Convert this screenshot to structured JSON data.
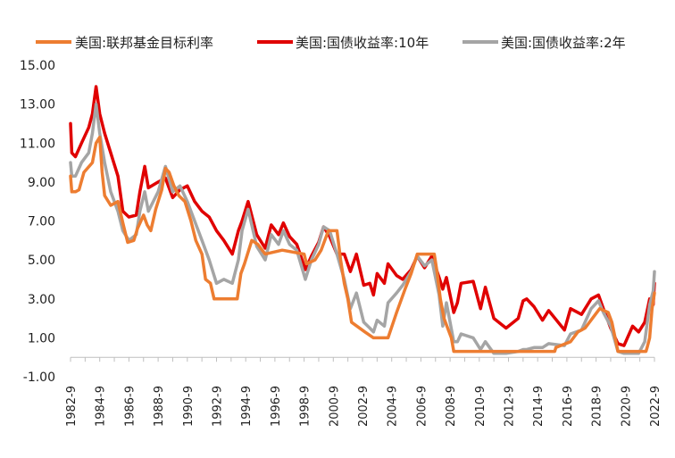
{
  "chart_data": {
    "type": "line",
    "title": "",
    "xlabel": "",
    "ylabel": "",
    "ylim": [
      -1.0,
      15.0
    ],
    "y_ticks": [
      "15.00",
      "13.00",
      "11.00",
      "9.00",
      "7.00",
      "5.00",
      "3.00",
      "1.00",
      "-1.00"
    ],
    "x_ticks": [
      "1982-9",
      "1984-9",
      "1986-9",
      "1988-9",
      "1990-9",
      "1992-9",
      "1994-9",
      "1996-9",
      "1998-9",
      "2000-9",
      "2002-9",
      "2004-9",
      "2006-9",
      "2008-9",
      "2010-9",
      "2012-9",
      "2014-9",
      "2016-9",
      "2018-9",
      "2020-9",
      "2022-9"
    ],
    "grid": false,
    "legend_position": "top",
    "series": [
      {
        "name": "美国:联邦基金目标利率",
        "color": "#ED7D31",
        "points": [
          [
            "1982-9",
            9.3
          ],
          [
            "1982-10",
            8.5
          ],
          [
            "1983-1",
            8.5
          ],
          [
            "1983-4",
            8.6
          ],
          [
            "1983-8",
            9.5
          ],
          [
            "1984-3",
            10.0
          ],
          [
            "1984-6",
            11.0
          ],
          [
            "1984-9",
            11.3
          ],
          [
            "1984-11",
            9.5
          ],
          [
            "1985-1",
            8.3
          ],
          [
            "1985-6",
            7.8
          ],
          [
            "1985-12",
            8.0
          ],
          [
            "1986-4",
            6.9
          ],
          [
            "1986-8",
            5.9
          ],
          [
            "1987-1",
            6.0
          ],
          [
            "1987-4",
            6.6
          ],
          [
            "1987-9",
            7.3
          ],
          [
            "1987-12",
            6.8
          ],
          [
            "1988-3",
            6.5
          ],
          [
            "1988-7",
            7.6
          ],
          [
            "1988-12",
            8.6
          ],
          [
            "1989-3",
            9.7
          ],
          [
            "1989-6",
            9.5
          ],
          [
            "1989-10",
            8.8
          ],
          [
            "1990-2",
            8.3
          ],
          [
            "1990-7",
            8.0
          ],
          [
            "1990-12",
            7.0
          ],
          [
            "1991-4",
            6.0
          ],
          [
            "1991-9",
            5.3
          ],
          [
            "1991-12",
            4.0
          ],
          [
            "1992-4",
            3.8
          ],
          [
            "1992-7",
            3.0
          ],
          [
            "1993-6",
            3.0
          ],
          [
            "1994-2",
            3.0
          ],
          [
            "1994-5",
            4.3
          ],
          [
            "1994-8",
            4.8
          ],
          [
            "1995-2",
            6.0
          ],
          [
            "1995-7",
            5.8
          ],
          [
            "1996-1",
            5.3
          ],
          [
            "1997-3",
            5.5
          ],
          [
            "1998-9",
            5.3
          ],
          [
            "1998-11",
            4.8
          ],
          [
            "1999-6",
            5.0
          ],
          [
            "1999-11",
            5.5
          ],
          [
            "2000-5",
            6.5
          ],
          [
            "2000-12",
            6.5
          ],
          [
            "2001-3",
            5.0
          ],
          [
            "2001-6",
            3.8
          ],
          [
            "2001-9",
            3.0
          ],
          [
            "2001-12",
            1.8
          ],
          [
            "2002-11",
            1.3
          ],
          [
            "2003-6",
            1.0
          ],
          [
            "2004-6",
            1.0
          ],
          [
            "2005-1",
            2.3
          ],
          [
            "2005-8",
            3.5
          ],
          [
            "2006-1",
            4.3
          ],
          [
            "2006-6",
            5.3
          ],
          [
            "2007-8",
            5.3
          ],
          [
            "2007-10",
            4.5
          ],
          [
            "2008-1",
            3.0
          ],
          [
            "2008-4",
            2.0
          ],
          [
            "2008-10",
            1.0
          ],
          [
            "2008-12",
            0.3
          ],
          [
            "2015-11",
            0.3
          ],
          [
            "2015-12",
            0.5
          ],
          [
            "2016-12",
            0.8
          ],
          [
            "2017-6",
            1.3
          ],
          [
            "2017-12",
            1.5
          ],
          [
            "2018-6",
            2.0
          ],
          [
            "2018-12",
            2.5
          ],
          [
            "2019-7",
            2.3
          ],
          [
            "2019-10",
            1.8
          ],
          [
            "2020-3",
            0.3
          ],
          [
            "2022-2",
            0.3
          ],
          [
            "2022-3",
            0.5
          ],
          [
            "2022-5",
            1.0
          ],
          [
            "2022-7",
            2.5
          ],
          [
            "2022-9",
            3.3
          ]
        ]
      },
      {
        "name": "美国:国债收益率:10年",
        "color": "#E00000",
        "points": [
          [
            "1982-9",
            12.0
          ],
          [
            "1982-10",
            10.5
          ],
          [
            "1983-1",
            10.3
          ],
          [
            "1983-6",
            11.0
          ],
          [
            "1983-12",
            11.8
          ],
          [
            "1984-3",
            12.5
          ],
          [
            "1984-6",
            13.9
          ],
          [
            "1984-9",
            12.5
          ],
          [
            "1985-1",
            11.5
          ],
          [
            "1985-6",
            10.5
          ],
          [
            "1985-12",
            9.3
          ],
          [
            "1986-4",
            7.5
          ],
          [
            "1986-9",
            7.2
          ],
          [
            "1987-3",
            7.3
          ],
          [
            "1987-6",
            8.5
          ],
          [
            "1987-10",
            9.8
          ],
          [
            "1988-1",
            8.7
          ],
          [
            "1988-9",
            9.0
          ],
          [
            "1989-3",
            9.2
          ],
          [
            "1989-9",
            8.2
          ],
          [
            "1990-3",
            8.6
          ],
          [
            "1990-9",
            8.8
          ],
          [
            "1991-3",
            8.0
          ],
          [
            "1991-9",
            7.5
          ],
          [
            "1992-3",
            7.2
          ],
          [
            "1992-9",
            6.5
          ],
          [
            "1993-3",
            6.0
          ],
          [
            "1993-10",
            5.3
          ],
          [
            "1994-3",
            6.5
          ],
          [
            "1994-6",
            7.0
          ],
          [
            "1994-11",
            8.0
          ],
          [
            "1995-6",
            6.3
          ],
          [
            "1996-1",
            5.6
          ],
          [
            "1996-6",
            6.8
          ],
          [
            "1996-12",
            6.3
          ],
          [
            "1997-4",
            6.9
          ],
          [
            "1997-9",
            6.2
          ],
          [
            "1998-3",
            5.8
          ],
          [
            "1998-10",
            4.5
          ],
          [
            "1999-3",
            5.2
          ],
          [
            "1999-9",
            5.9
          ],
          [
            "2000-1",
            6.7
          ],
          [
            "2000-6",
            6.2
          ],
          [
            "2000-12",
            5.3
          ],
          [
            "2001-6",
            5.3
          ],
          [
            "2001-11",
            4.4
          ],
          [
            "2002-4",
            5.3
          ],
          [
            "2002-10",
            3.7
          ],
          [
            "2003-3",
            3.8
          ],
          [
            "2003-6",
            3.2
          ],
          [
            "2003-9",
            4.3
          ],
          [
            "2004-3",
            3.8
          ],
          [
            "2004-6",
            4.8
          ],
          [
            "2005-1",
            4.2
          ],
          [
            "2005-6",
            4.0
          ],
          [
            "2006-1",
            4.5
          ],
          [
            "2006-6",
            5.2
          ],
          [
            "2006-12",
            4.6
          ],
          [
            "2007-6",
            5.2
          ],
          [
            "2007-12",
            4.1
          ],
          [
            "2008-3",
            3.5
          ],
          [
            "2008-6",
            4.1
          ],
          [
            "2008-12",
            2.3
          ],
          [
            "2009-3",
            2.8
          ],
          [
            "2009-6",
            3.8
          ],
          [
            "2010-4",
            3.9
          ],
          [
            "2010-10",
            2.5
          ],
          [
            "2011-2",
            3.6
          ],
          [
            "2011-9",
            2.0
          ],
          [
            "2012-7",
            1.5
          ],
          [
            "2013-5",
            2.0
          ],
          [
            "2013-9",
            2.9
          ],
          [
            "2013-12",
            3.0
          ],
          [
            "2014-6",
            2.6
          ],
          [
            "2015-1",
            1.9
          ],
          [
            "2015-6",
            2.4
          ],
          [
            "2016-7",
            1.4
          ],
          [
            "2016-12",
            2.5
          ],
          [
            "2017-9",
            2.2
          ],
          [
            "2018-5",
            3.0
          ],
          [
            "2018-11",
            3.2
          ],
          [
            "2019-3",
            2.5
          ],
          [
            "2019-9",
            1.5
          ],
          [
            "2020-3",
            0.7
          ],
          [
            "2020-8",
            0.6
          ],
          [
            "2021-3",
            1.6
          ],
          [
            "2021-8",
            1.3
          ],
          [
            "2022-1",
            1.8
          ],
          [
            "2022-5",
            3.0
          ],
          [
            "2022-8",
            2.7
          ],
          [
            "2022-9",
            3.8
          ]
        ]
      },
      {
        "name": "美国:国债收益率:2年",
        "color": "#A5A5A5",
        "points": [
          [
            "1982-9",
            10.0
          ],
          [
            "1982-10",
            9.3
          ],
          [
            "1983-1",
            9.3
          ],
          [
            "1983-6",
            10.0
          ],
          [
            "1983-12",
            10.5
          ],
          [
            "1984-3",
            11.5
          ],
          [
            "1984-6",
            13.0
          ],
          [
            "1984-9",
            11.5
          ],
          [
            "1985-1",
            10.0
          ],
          [
            "1985-6",
            8.5
          ],
          [
            "1985-12",
            7.5
          ],
          [
            "1986-4",
            6.5
          ],
          [
            "1986-9",
            6.0
          ],
          [
            "1987-3",
            6.3
          ],
          [
            "1987-6",
            7.5
          ],
          [
            "1987-10",
            8.5
          ],
          [
            "1988-1",
            7.5
          ],
          [
            "1988-9",
            8.5
          ],
          [
            "1989-3",
            9.8
          ],
          [
            "1989-9",
            8.5
          ],
          [
            "1990-3",
            8.8
          ],
          [
            "1990-9",
            8.0
          ],
          [
            "1991-3",
            7.0
          ],
          [
            "1991-9",
            6.0
          ],
          [
            "1992-3",
            5.0
          ],
          [
            "1992-9",
            3.8
          ],
          [
            "1993-3",
            4.0
          ],
          [
            "1993-10",
            3.8
          ],
          [
            "1994-3",
            5.0
          ],
          [
            "1994-6",
            6.5
          ],
          [
            "1994-11",
            7.6
          ],
          [
            "1995-6",
            5.7
          ],
          [
            "1996-1",
            5.0
          ],
          [
            "1996-6",
            6.3
          ],
          [
            "1996-12",
            5.8
          ],
          [
            "1997-4",
            6.5
          ],
          [
            "1997-9",
            5.8
          ],
          [
            "1998-3",
            5.5
          ],
          [
            "1998-10",
            4.0
          ],
          [
            "1999-3",
            5.0
          ],
          [
            "1999-9",
            5.8
          ],
          [
            "2000-1",
            6.7
          ],
          [
            "2000-6",
            6.5
          ],
          [
            "2000-12",
            5.3
          ],
          [
            "2001-6",
            4.0
          ],
          [
            "2001-11",
            2.5
          ],
          [
            "2002-4",
            3.3
          ],
          [
            "2002-10",
            1.8
          ],
          [
            "2003-3",
            1.5
          ],
          [
            "2003-6",
            1.3
          ],
          [
            "2003-9",
            1.9
          ],
          [
            "2004-3",
            1.6
          ],
          [
            "2004-6",
            2.8
          ],
          [
            "2005-1",
            3.3
          ],
          [
            "2005-6",
            3.7
          ],
          [
            "2006-1",
            4.4
          ],
          [
            "2006-6",
            5.2
          ],
          [
            "2006-12",
            4.7
          ],
          [
            "2007-6",
            5.0
          ],
          [
            "2007-12",
            3.2
          ],
          [
            "2008-3",
            1.6
          ],
          [
            "2008-6",
            2.8
          ],
          [
            "2008-12",
            0.8
          ],
          [
            "2009-3",
            0.8
          ],
          [
            "2009-6",
            1.2
          ],
          [
            "2010-4",
            1.0
          ],
          [
            "2010-10",
            0.4
          ],
          [
            "2011-2",
            0.8
          ],
          [
            "2011-9",
            0.2
          ],
          [
            "2012-7",
            0.2
          ],
          [
            "2013-5",
            0.3
          ],
          [
            "2013-9",
            0.4
          ],
          [
            "2013-12",
            0.4
          ],
          [
            "2014-6",
            0.5
          ],
          [
            "2015-1",
            0.5
          ],
          [
            "2015-6",
            0.7
          ],
          [
            "2016-7",
            0.6
          ],
          [
            "2016-12",
            1.2
          ],
          [
            "2017-9",
            1.4
          ],
          [
            "2018-5",
            2.5
          ],
          [
            "2018-11",
            2.9
          ],
          [
            "2019-3",
            2.3
          ],
          [
            "2019-9",
            1.6
          ],
          [
            "2020-3",
            0.3
          ],
          [
            "2020-8",
            0.2
          ],
          [
            "2021-3",
            0.2
          ],
          [
            "2021-8",
            0.2
          ],
          [
            "2022-1",
            0.8
          ],
          [
            "2022-5",
            2.7
          ],
          [
            "2022-8",
            3.4
          ],
          [
            "2022-9",
            4.4
          ]
        ]
      }
    ]
  }
}
